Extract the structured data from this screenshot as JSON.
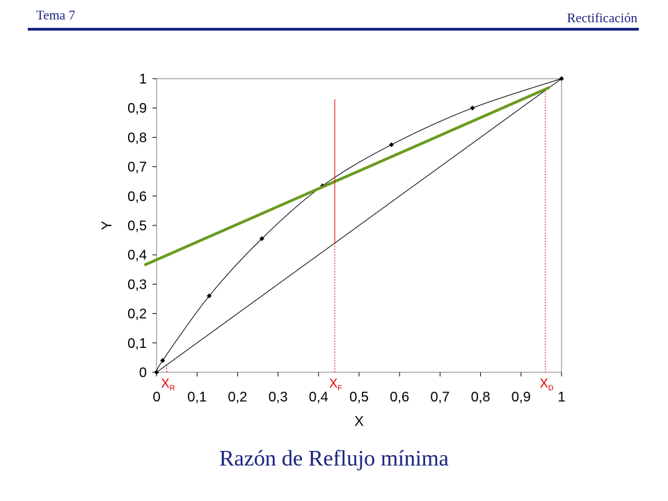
{
  "header": {
    "left": "Tema 7",
    "right": "Rectificación"
  },
  "caption": "Razón de Reflujo mínima",
  "colors": {
    "header": "#1a237e",
    "marker": "#e00000",
    "operating_line": "#6a9a1f"
  },
  "chart_data": {
    "type": "line",
    "title": "",
    "xlabel": "X",
    "ylabel": "Y",
    "xlim": [
      0,
      1
    ],
    "ylim": [
      0,
      1
    ],
    "x_ticks": [
      "0",
      "0,1",
      "0,2",
      "0,3",
      "0,4",
      "0,5",
      "0,6",
      "0,7",
      "0,8",
      "0,9",
      "1"
    ],
    "y_ticks": [
      "0",
      "0,1",
      "0,2",
      "0,3",
      "0,4",
      "0,5",
      "0,6",
      "0,7",
      "0,8",
      "0,9",
      "1"
    ],
    "grid": false,
    "series": [
      {
        "kind": "diagonal",
        "points": [
          [
            0,
            0
          ],
          [
            1,
            1
          ]
        ]
      },
      {
        "kind": "equilibrium",
        "points": [
          [
            0,
            0
          ],
          [
            0.015,
            0.04
          ],
          [
            0.13,
            0.26
          ],
          [
            0.26,
            0.455
          ],
          [
            0.41,
            0.635
          ],
          [
            0.58,
            0.775
          ],
          [
            0.78,
            0.9
          ],
          [
            1,
            1
          ]
        ]
      },
      {
        "kind": "operating",
        "points": [
          [
            -0.03,
            0.365
          ],
          [
            0.97,
            0.97
          ]
        ]
      }
    ],
    "markers": [
      {
        "base": "X",
        "sub": "R",
        "x": 0.025,
        "y_top": 0.025
      },
      {
        "base": "X",
        "sub": "F",
        "x": 0.44,
        "y_top": 0.93,
        "solid_from": 0.44
      },
      {
        "base": "X",
        "sub": "D",
        "x": 0.96,
        "y_top": 0.96
      }
    ]
  }
}
